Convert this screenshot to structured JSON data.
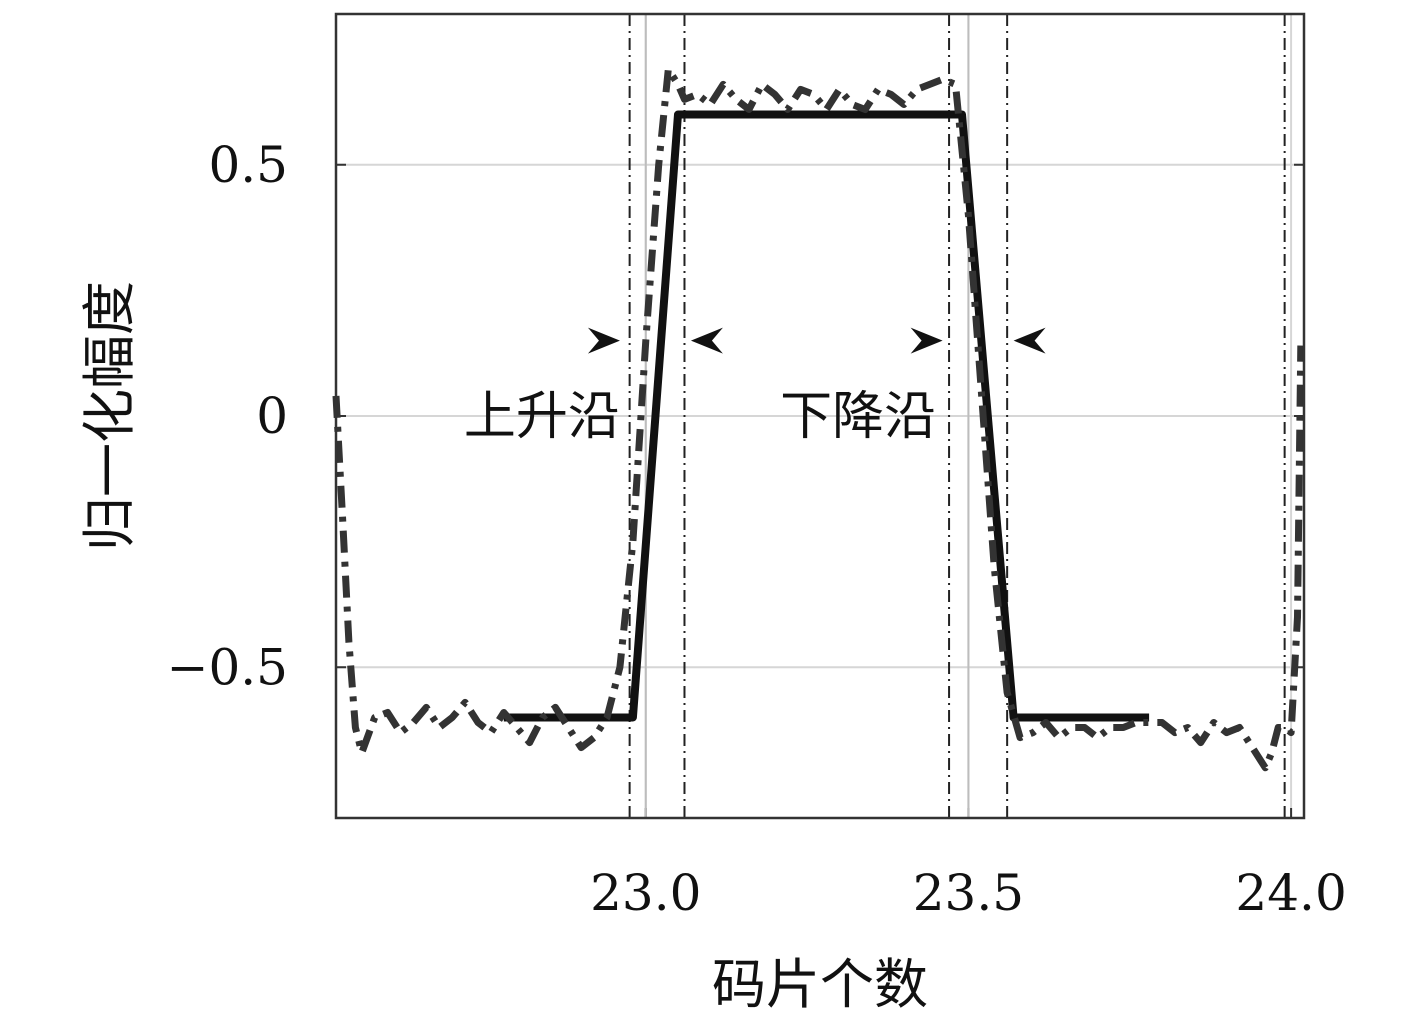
{
  "chart_data": {
    "type": "line",
    "title": "",
    "xlabel": "码片个数",
    "ylabel": "归一化幅度",
    "xlim": [
      22.52,
      24.02
    ],
    "ylim": [
      -0.8,
      0.8
    ],
    "x_ticks": [
      {
        "value": 23.0,
        "label": "23.0"
      },
      {
        "value": 23.5,
        "label": "23.5"
      },
      {
        "value": 24.0,
        "label": "24.0"
      }
    ],
    "y_ticks": [
      {
        "value": 0.5,
        "label": "0.5"
      },
      {
        "value": 0,
        "label": "0"
      },
      {
        "value": -0.5,
        "label": "−0.5"
      }
    ],
    "grid": true,
    "series": [
      {
        "style": "solid",
        "color": "#111111",
        "x": [
          22.78,
          22.98,
          23.05,
          23.49,
          23.57,
          23.78
        ],
        "y": [
          -0.6,
          -0.6,
          0.6,
          0.6,
          -0.6,
          -0.6
        ]
      },
      {
        "style": "dashdot",
        "color": "#333333",
        "x": [
          22.52,
          22.53,
          22.54,
          22.55,
          22.56,
          22.58,
          22.6,
          22.62,
          22.64,
          22.66,
          22.68,
          22.7,
          22.72,
          22.74,
          22.76,
          22.78,
          22.8,
          22.82,
          22.84,
          22.86,
          22.88,
          22.9,
          22.92,
          22.94,
          22.96,
          22.98,
          23.0,
          23.02,
          23.035,
          23.05,
          23.06,
          23.08,
          23.1,
          23.12,
          23.14,
          23.16,
          23.18,
          23.2,
          23.22,
          23.24,
          23.26,
          23.28,
          23.3,
          23.32,
          23.34,
          23.36,
          23.38,
          23.4,
          23.42,
          23.44,
          23.46,
          23.48,
          23.5,
          23.52,
          23.54,
          23.56,
          23.58,
          23.6,
          23.62,
          23.64,
          23.66,
          23.68,
          23.7,
          23.72,
          23.74,
          23.76,
          23.78,
          23.8,
          23.82,
          23.84,
          23.86,
          23.88,
          23.9,
          23.92,
          23.94,
          23.96,
          23.97,
          23.98,
          23.99,
          24.0,
          24.01,
          24.015
        ],
        "y": [
          0.04,
          -0.2,
          -0.45,
          -0.62,
          -0.67,
          -0.6,
          -0.59,
          -0.63,
          -0.61,
          -0.58,
          -0.62,
          -0.6,
          -0.57,
          -0.61,
          -0.63,
          -0.59,
          -0.62,
          -0.65,
          -0.6,
          -0.58,
          -0.62,
          -0.66,
          -0.64,
          -0.6,
          -0.5,
          -0.25,
          0.15,
          0.5,
          0.69,
          0.66,
          0.63,
          0.64,
          0.62,
          0.66,
          0.63,
          0.61,
          0.66,
          0.64,
          0.61,
          0.65,
          0.64,
          0.61,
          0.65,
          0.62,
          0.61,
          0.65,
          0.64,
          0.62,
          0.65,
          0.66,
          0.67,
          0.66,
          0.4,
          0.05,
          -0.3,
          -0.55,
          -0.64,
          -0.63,
          -0.61,
          -0.64,
          -0.62,
          -0.62,
          -0.64,
          -0.62,
          -0.62,
          -0.61,
          -0.61,
          -0.61,
          -0.63,
          -0.62,
          -0.65,
          -0.61,
          -0.63,
          -0.62,
          -0.66,
          -0.7,
          -0.67,
          -0.62,
          -0.62,
          -0.63,
          -0.4,
          0.14
        ]
      }
    ],
    "vertical_reference_lines": [
      {
        "x": 22.975,
        "style": "dashdot"
      },
      {
        "x": 23.0,
        "style": "solid"
      },
      {
        "x": 23.06,
        "style": "dashdot"
      },
      {
        "x": 23.47,
        "style": "dashdot"
      },
      {
        "x": 23.5,
        "style": "solid"
      },
      {
        "x": 23.56,
        "style": "dashdot"
      },
      {
        "x": 23.99,
        "style": "dashdot"
      }
    ],
    "annotations": [
      {
        "text": "上升沿",
        "x": 22.96,
        "y": 0.0,
        "anchor": "end"
      },
      {
        "text": "下降沿",
        "x": 23.45,
        "y": 0.0,
        "anchor": "end"
      }
    ],
    "arrows": [
      {
        "x": 22.96,
        "y": 0.15,
        "direction": "right"
      },
      {
        "x": 23.07,
        "y": 0.15,
        "direction": "left"
      },
      {
        "x": 23.46,
        "y": 0.15,
        "direction": "right"
      },
      {
        "x": 23.57,
        "y": 0.15,
        "direction": "left"
      }
    ]
  }
}
